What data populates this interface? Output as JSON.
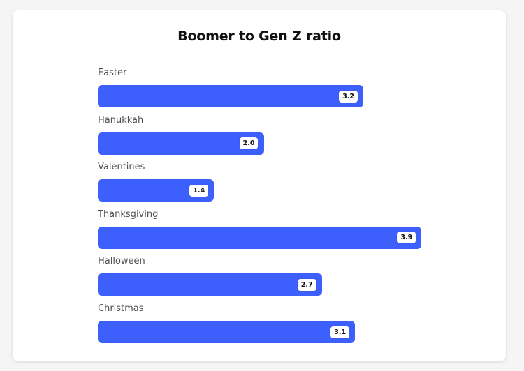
{
  "chart_data": {
    "type": "bar",
    "orientation": "horizontal",
    "title": "Boomer to Gen Z ratio",
    "categories": [
      "Easter",
      "Hanukkah",
      "Valentines",
      "Thanksgiving",
      "Halloween",
      "Christmas"
    ],
    "values": [
      3.2,
      2.0,
      1.4,
      3.9,
      2.7,
      3.1
    ],
    "value_labels": [
      "3.2",
      "2.0",
      "1.4",
      "3.9",
      "2.7",
      "3.1"
    ],
    "xlim": [
      0,
      4.0
    ],
    "grid": false,
    "bar_color": "#3d5ffb"
  }
}
